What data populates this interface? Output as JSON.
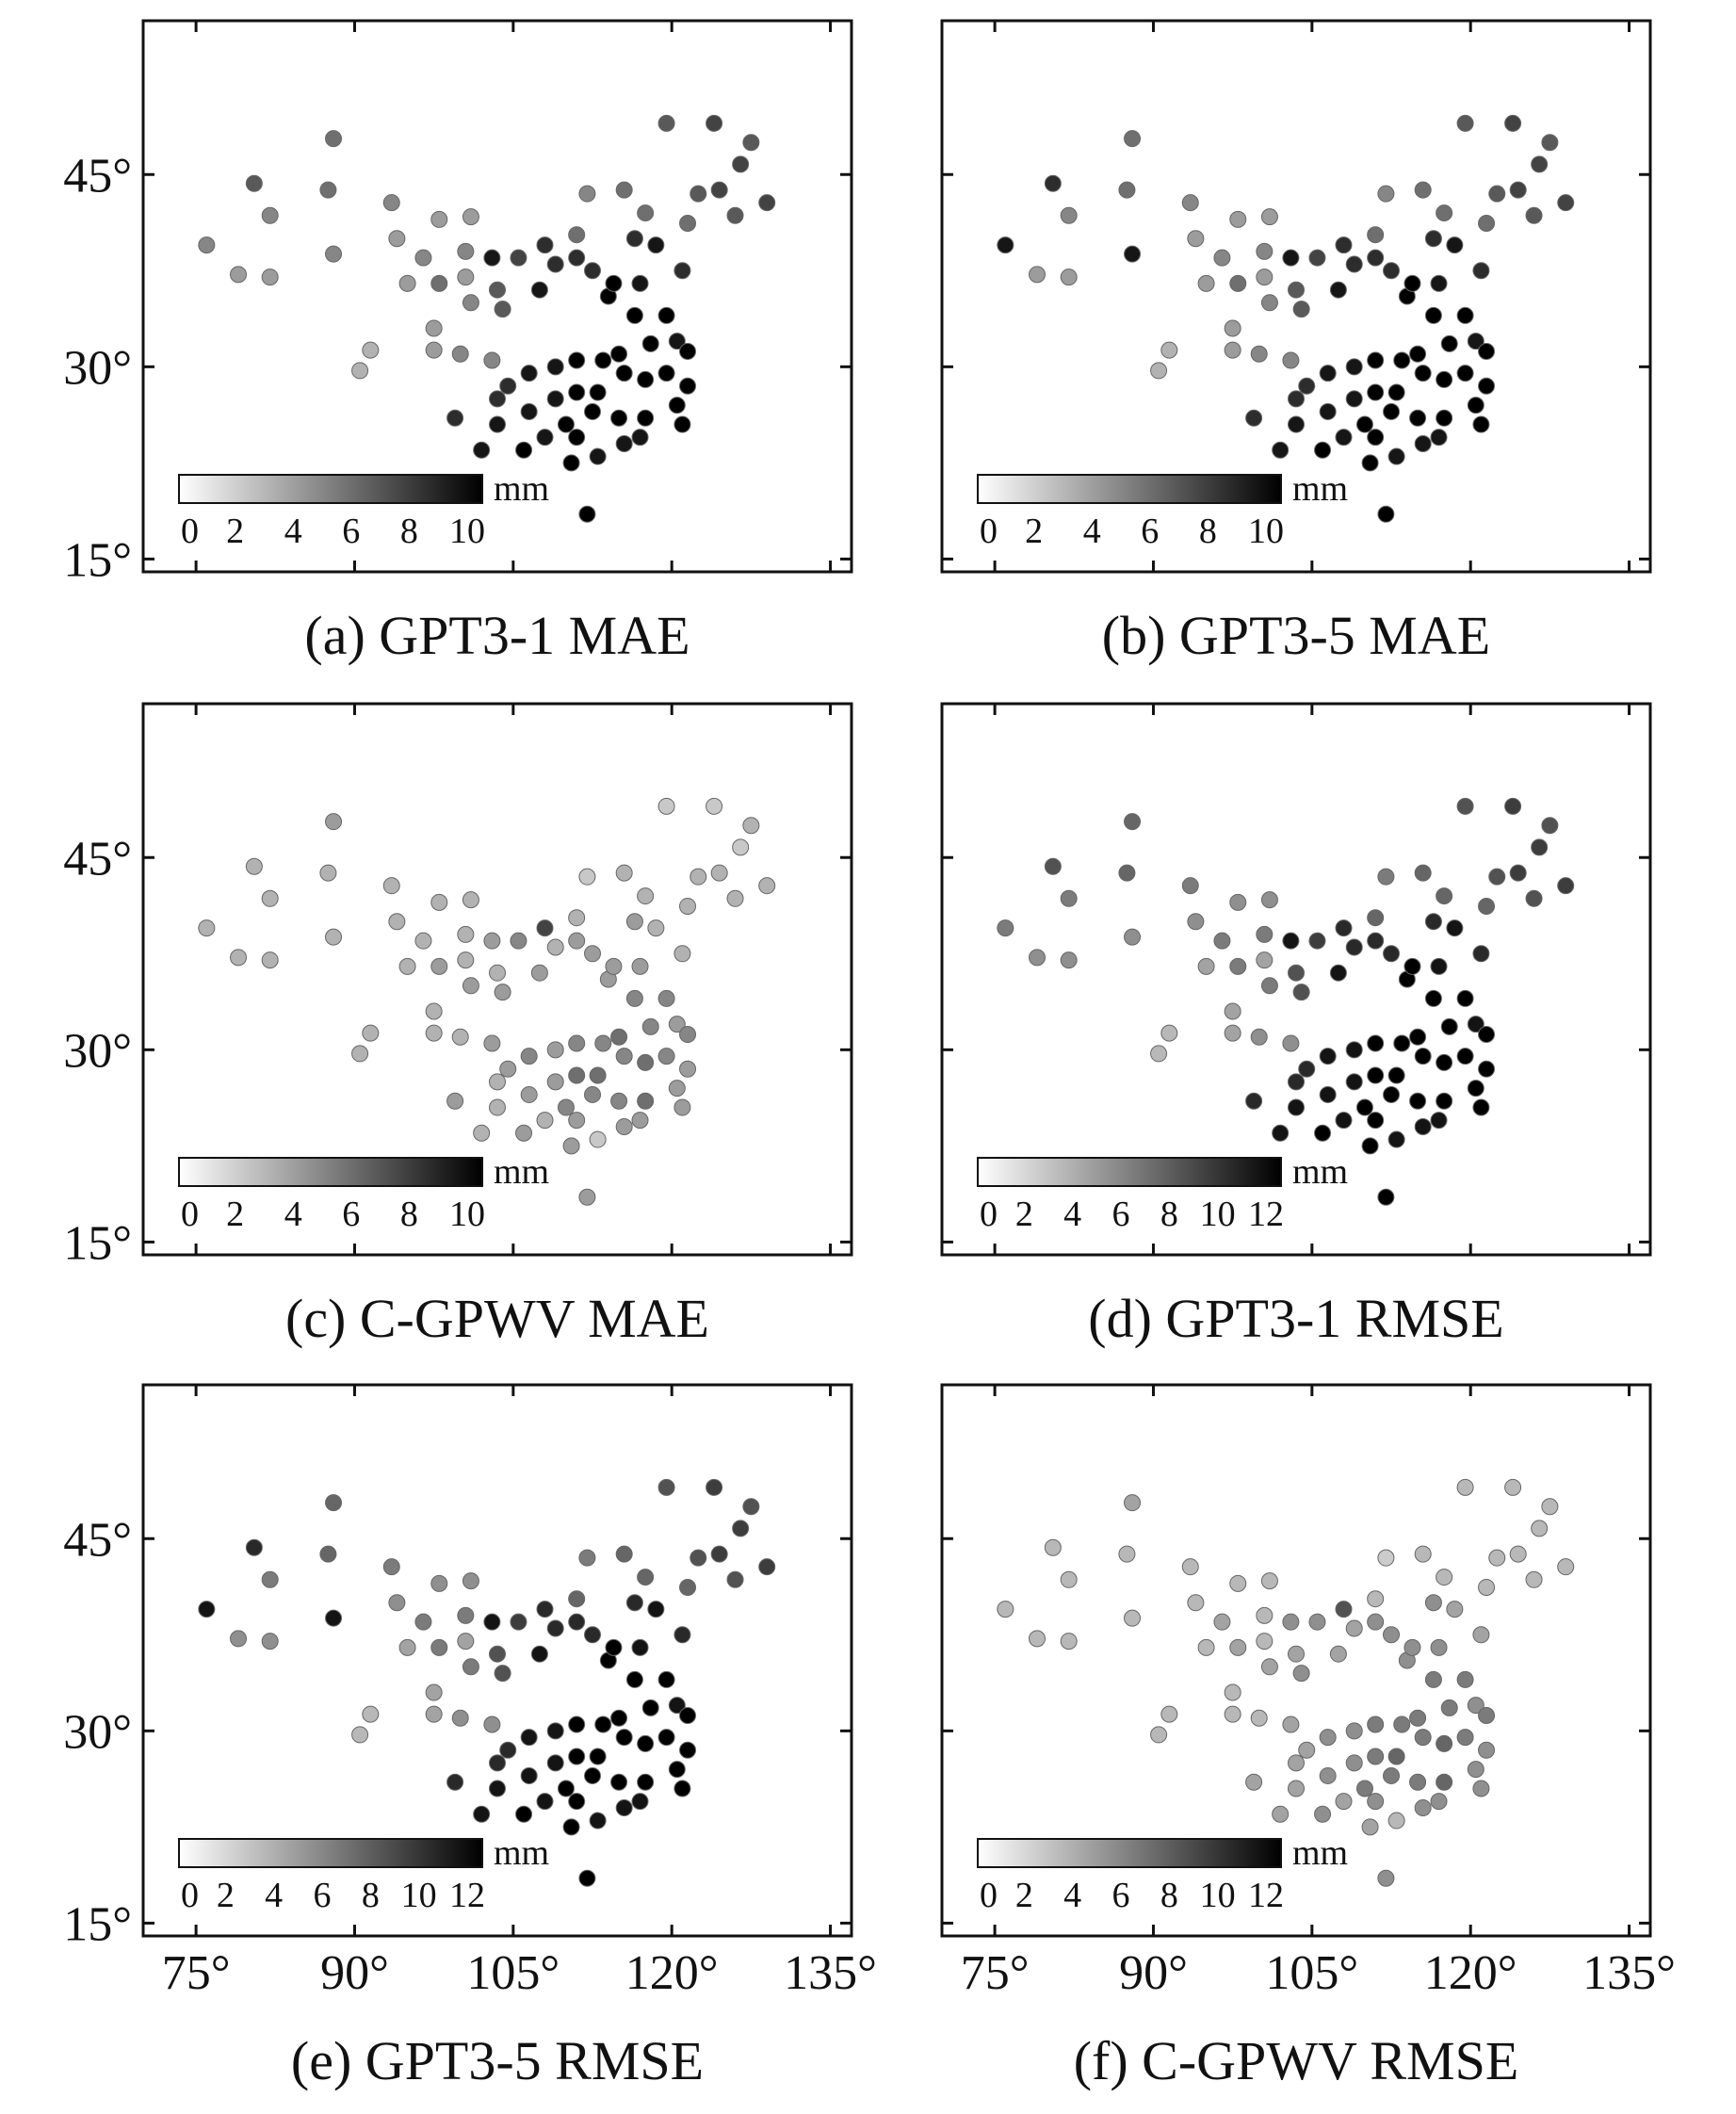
{
  "figure": {
    "y_tick_labels": [
      "45°",
      "30°",
      "15°"
    ],
    "x_tick_labels": [
      "75°",
      "90°",
      "105°",
      "120°",
      "135°"
    ],
    "colorbar_unit": "mm"
  },
  "stations": [
    [
      119.5,
      49.0
    ],
    [
      124.0,
      49.0
    ],
    [
      127.5,
      47.5
    ],
    [
      126.5,
      45.8
    ],
    [
      124.5,
      43.8
    ],
    [
      122.5,
      43.5
    ],
    [
      129.0,
      42.8
    ],
    [
      126.0,
      41.8
    ],
    [
      121.5,
      41.2
    ],
    [
      117.5,
      42.0
    ],
    [
      115.5,
      43.8
    ],
    [
      112.0,
      43.5
    ],
    [
      105.5,
      38.5
    ],
    [
      108.0,
      39.5
    ],
    [
      111.0,
      40.3
    ],
    [
      116.5,
      40.0
    ],
    [
      118.5,
      39.5
    ],
    [
      117.0,
      36.5
    ],
    [
      121.0,
      37.5
    ],
    [
      112.5,
      37.5
    ],
    [
      109.0,
      38.0
    ],
    [
      107.5,
      36.0
    ],
    [
      114.0,
      35.5
    ],
    [
      116.5,
      34.0
    ],
    [
      119.5,
      34.0
    ],
    [
      120.5,
      32.0
    ],
    [
      118.0,
      31.8
    ],
    [
      121.5,
      31.2
    ],
    [
      115.0,
      31.0
    ],
    [
      113.5,
      30.5
    ],
    [
      111.0,
      30.5
    ],
    [
      109.0,
      30.0
    ],
    [
      106.5,
      29.5
    ],
    [
      104.5,
      28.5
    ],
    [
      103.5,
      27.5
    ],
    [
      106.5,
      26.5
    ],
    [
      109.0,
      27.5
    ],
    [
      111.0,
      28.0
    ],
    [
      113.0,
      28.0
    ],
    [
      115.5,
      29.5
    ],
    [
      117.5,
      29.0
    ],
    [
      119.5,
      29.5
    ],
    [
      121.5,
      28.5
    ],
    [
      120.5,
      27.0
    ],
    [
      117.5,
      26.0
    ],
    [
      115.0,
      26.0
    ],
    [
      112.5,
      26.5
    ],
    [
      110.0,
      25.5
    ],
    [
      108.0,
      24.5
    ],
    [
      106.0,
      23.5
    ],
    [
      102.0,
      23.5
    ],
    [
      99.5,
      26.0
    ],
    [
      103.5,
      25.5
    ],
    [
      111.0,
      24.5
    ],
    [
      113.0,
      23.0
    ],
    [
      115.5,
      24.0
    ],
    [
      117.0,
      24.5
    ],
    [
      121.0,
      25.5
    ],
    [
      110.5,
      22.5
    ],
    [
      112.0,
      18.5
    ],
    [
      103.0,
      30.5
    ],
    [
      100.0,
      31.0
    ],
    [
      97.5,
      33.0
    ],
    [
      98.0,
      36.5
    ],
    [
      95.0,
      36.5
    ],
    [
      100.5,
      37.0
    ],
    [
      103.5,
      36.0
    ],
    [
      104.0,
      34.5
    ],
    [
      101.0,
      35.0
    ],
    [
      96.5,
      38.5
    ],
    [
      100.5,
      39.0
    ],
    [
      98.0,
      41.5
    ],
    [
      101.0,
      41.7
    ],
    [
      94.0,
      40.0
    ],
    [
      93.5,
      42.8
    ],
    [
      88.0,
      47.8
    ],
    [
      87.5,
      43.8
    ],
    [
      80.5,
      44.3
    ],
    [
      82.0,
      41.8
    ],
    [
      76.0,
      39.5
    ],
    [
      79.0,
      37.2
    ],
    [
      82.0,
      37.0
    ],
    [
      88.0,
      38.8
    ],
    [
      91.5,
      31.3
    ],
    [
      90.5,
      29.7
    ],
    [
      97.5,
      31.3
    ],
    [
      111.0,
      38.5
    ],
    [
      103.0,
      38.5
    ],
    [
      114.5,
      36.5
    ]
  ],
  "panels": [
    {
      "caption": "(a) GPT3-1 MAE",
      "colorbar_ticks": [
        "0",
        "2",
        "4",
        "6",
        "8",
        "10"
      ],
      "vmax": 11,
      "values": [
        7,
        8,
        7,
        8,
        8,
        7,
        8,
        7,
        6,
        6,
        6,
        5,
        8,
        9,
        6,
        9,
        10,
        10,
        9,
        9,
        9,
        10,
        11,
        11,
        11,
        10,
        11,
        11,
        11,
        11,
        11,
        10,
        10,
        9,
        9,
        10,
        10,
        11,
        11,
        11,
        11,
        11,
        11,
        11,
        11,
        11,
        11,
        11,
        10,
        11,
        10,
        9,
        10,
        11,
        10,
        10,
        10,
        11,
        11,
        11,
        5,
        5,
        4,
        6,
        4,
        4,
        7,
        7,
        5,
        5,
        5,
        4,
        4,
        4,
        5,
        6,
        6,
        7,
        5,
        5,
        4,
        4,
        5,
        3,
        3,
        4,
        9,
        10,
        11
      ]
    },
    {
      "caption": "(b) GPT3-5 MAE",
      "colorbar_ticks": [
        "0",
        "2",
        "4",
        "6",
        "8",
        "10"
      ],
      "vmax": 11,
      "values": [
        7,
        8,
        7,
        8,
        8,
        7,
        8,
        7,
        6,
        6,
        6,
        5,
        8,
        9,
        6,
        9,
        10,
        10,
        9,
        9,
        9,
        10,
        11,
        11,
        11,
        10,
        11,
        11,
        11,
        11,
        11,
        10,
        10,
        9,
        9,
        10,
        10,
        11,
        11,
        11,
        11,
        11,
        11,
        11,
        11,
        11,
        11,
        11,
        10,
        11,
        10,
        9,
        10,
        11,
        10,
        10,
        10,
        11,
        11,
        11,
        5,
        5,
        4,
        6,
        4,
        4,
        7,
        7,
        5,
        5,
        5,
        4,
        4,
        4,
        5,
        6,
        6,
        9,
        5,
        10,
        4,
        4,
        10,
        3,
        3,
        4,
        9,
        10,
        11
      ]
    },
    {
      "caption": "(c) C-GPWV MAE",
      "colorbar_ticks": [
        "0",
        "2",
        "4",
        "6",
        "8",
        "10"
      ],
      "vmax": 11,
      "values": [
        2,
        2,
        3,
        2,
        3,
        3,
        3,
        3,
        3,
        3,
        3,
        2,
        5,
        8,
        3,
        4,
        3,
        4,
        3,
        4,
        3,
        4,
        4,
        5,
        5,
        4,
        5,
        5,
        6,
        5,
        5,
        4,
        5,
        4,
        3,
        4,
        4,
        6,
        6,
        5,
        6,
        5,
        4,
        4,
        6,
        5,
        5,
        5,
        3,
        4,
        3,
        4,
        3,
        4,
        2,
        4,
        4,
        4,
        4,
        4,
        4,
        3,
        3,
        4,
        3,
        3,
        3,
        4,
        4,
        3,
        3,
        3,
        3,
        3,
        3,
        4,
        3,
        3,
        3,
        3,
        3,
        3,
        3,
        3,
        3,
        3,
        4,
        4,
        4
      ]
    },
    {
      "caption": "(d) GPT3-1 RMSE",
      "colorbar_ticks": [
        "0",
        "2",
        "4",
        "6",
        "8",
        "10",
        "12"
      ],
      "vmax": 12,
      "values": [
        8,
        9,
        8,
        9,
        9,
        8,
        9,
        8,
        7,
        7,
        7,
        6,
        9,
        10,
        7,
        10,
        11,
        11,
        10,
        10,
        10,
        11,
        12,
        12,
        12,
        11,
        12,
        12,
        12,
        12,
        12,
        11,
        11,
        10,
        10,
        11,
        11,
        12,
        12,
        12,
        12,
        12,
        12,
        12,
        12,
        12,
        12,
        12,
        11,
        12,
        11,
        10,
        11,
        12,
        11,
        11,
        11,
        12,
        12,
        12,
        5,
        5,
        4,
        6,
        4,
        4,
        8,
        8,
        6,
        6,
        6,
        5,
        5,
        5,
        6,
        7,
        7,
        8,
        6,
        6,
        5,
        5,
        5,
        3,
        3,
        4,
        10,
        11,
        12
      ]
    },
    {
      "caption": "(e) GPT3-5 RMSE",
      "colorbar_ticks": [
        "0",
        "2",
        "4",
        "6",
        "8",
        "10",
        "12"
      ],
      "vmax": 12,
      "values": [
        8,
        9,
        8,
        9,
        9,
        8,
        9,
        8,
        7,
        7,
        7,
        6,
        9,
        10,
        7,
        10,
        11,
        11,
        10,
        10,
        10,
        11,
        12,
        12,
        12,
        11,
        12,
        12,
        12,
        12,
        12,
        11,
        11,
        10,
        10,
        11,
        11,
        12,
        12,
        12,
        12,
        12,
        12,
        12,
        12,
        12,
        12,
        12,
        11,
        12,
        11,
        10,
        11,
        12,
        11,
        11,
        11,
        12,
        12,
        12,
        5,
        5,
        4,
        6,
        4,
        4,
        8,
        8,
        6,
        6,
        6,
        5,
        5,
        5,
        6,
        7,
        7,
        10,
        6,
        11,
        5,
        5,
        11,
        3,
        3,
        4,
        10,
        11,
        12
      ]
    },
    {
      "caption": "(f) C-GPWV RMSE",
      "colorbar_ticks": [
        "0",
        "2",
        "4",
        "6",
        "8",
        "10",
        "12"
      ],
      "vmax": 12,
      "values": [
        3,
        3,
        3,
        3,
        3,
        3,
        3,
        3,
        3,
        3,
        3,
        2,
        5,
        8,
        3,
        5,
        4,
        5,
        4,
        5,
        4,
        4,
        5,
        6,
        6,
        5,
        6,
        6,
        6,
        6,
        6,
        5,
        5,
        4,
        4,
        5,
        5,
        6,
        7,
        6,
        7,
        6,
        5,
        5,
        7,
        6,
        6,
        6,
        4,
        5,
        4,
        4,
        4,
        5,
        3,
        5,
        5,
        5,
        4,
        5,
        4,
        3,
        3,
        4,
        3,
        3,
        4,
        5,
        4,
        4,
        3,
        3,
        3,
        3,
        3,
        4,
        3,
        3,
        3,
        3,
        3,
        3,
        3,
        3,
        3,
        3,
        5,
        5,
        5
      ]
    }
  ]
}
